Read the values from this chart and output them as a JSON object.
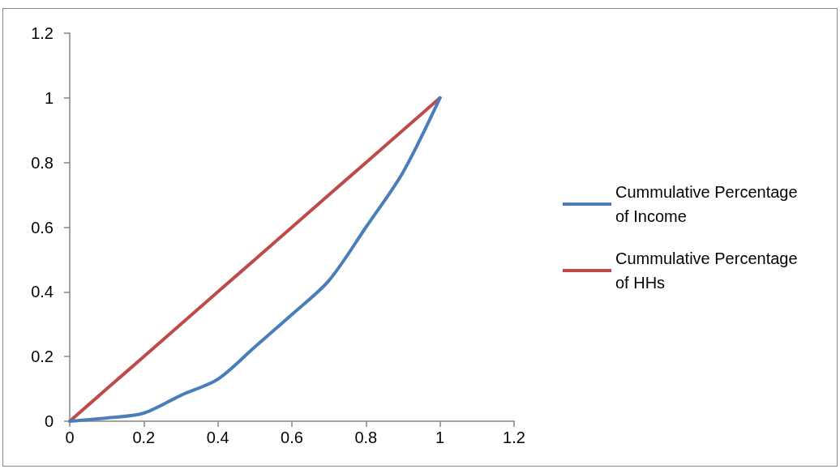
{
  "chart_data": {
    "type": "line",
    "x": [
      0,
      0.1,
      0.2,
      0.3,
      0.4,
      0.5,
      0.6,
      0.7,
      0.8,
      0.9,
      1
    ],
    "series": [
      {
        "name": "Cummulative Percentage of Income",
        "color": "#4a7ebb",
        "values": [
          0,
          0.01,
          0.025,
          0.08,
          0.13,
          0.23,
          0.33,
          0.435,
          0.6,
          0.77,
          1
        ]
      },
      {
        "name": "Cummulative Percentage of HHs",
        "color": "#be4b48",
        "values": [
          0,
          0.1,
          0.2,
          0.3,
          0.4,
          0.5,
          0.6,
          0.7,
          0.8,
          0.9,
          1
        ]
      }
    ],
    "xlim": [
      0,
      1.2
    ],
    "xticks": [
      0,
      0.2,
      0.4,
      0.6,
      0.8,
      1,
      1.2
    ],
    "ylim": [
      0,
      1.2
    ],
    "yticks": [
      0,
      0.2,
      0.4,
      0.6,
      0.8,
      1,
      1.2
    ],
    "grid": false,
    "legend": "right",
    "marker": "none",
    "line_style": "solid"
  }
}
